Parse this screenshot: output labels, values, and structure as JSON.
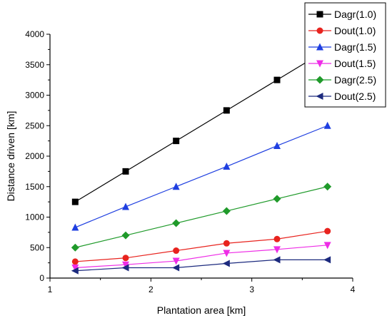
{
  "chart_data": {
    "type": "line",
    "title": "",
    "xlabel": "Plantation area [km]",
    "ylabel": "Distance driven [km]",
    "xlim": [
      1,
      4
    ],
    "ylim": [
      0,
      4000
    ],
    "x_ticks": [
      1,
      2,
      3,
      4
    ],
    "y_ticks": [
      0,
      500,
      1000,
      1500,
      2000,
      2500,
      3000,
      3500,
      4000
    ],
    "grid": false,
    "legend_position": "top-right",
    "x": [
      1.25,
      1.75,
      2.25,
      2.75,
      3.25,
      3.75
    ],
    "series": [
      {
        "name": "Dagr(1.0)",
        "color": "#000000",
        "marker": "square",
        "values": [
          1250,
          1750,
          2250,
          2750,
          3250,
          3750
        ]
      },
      {
        "name": "Dout(1.0)",
        "color": "#e8231e",
        "marker": "circle",
        "values": [
          270,
          330,
          450,
          570,
          640,
          770
        ]
      },
      {
        "name": "Dagr(1.5)",
        "color": "#1f3fe0",
        "marker": "triangle-up",
        "values": [
          830,
          1170,
          1500,
          1830,
          2170,
          2500
        ]
      },
      {
        "name": "Dout(1.5)",
        "color": "#ee2ce6",
        "marker": "triangle-down",
        "values": [
          170,
          220,
          280,
          410,
          470,
          540
        ]
      },
      {
        "name": "Dagr(2.5)",
        "color": "#1f9a2a",
        "marker": "diamond",
        "values": [
          500,
          700,
          900,
          1100,
          1300,
          1500
        ]
      },
      {
        "name": "Dout(2.5)",
        "color": "#1c2a7e",
        "marker": "triangle-left",
        "values": [
          120,
          170,
          170,
          240,
          300,
          300
        ]
      }
    ]
  }
}
